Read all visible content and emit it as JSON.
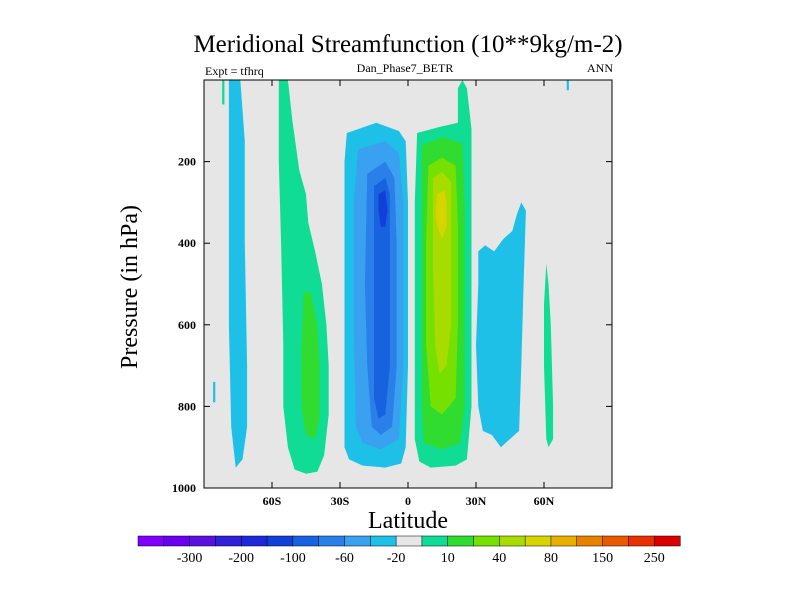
{
  "chart_data": {
    "type": "filled-contour",
    "title": "Meridional Streamfunction (10**9kg/m-2)",
    "left_label": "Expt = tfhrq",
    "center_label": "Dan_Phase7_BETR",
    "right_label": "ANN",
    "xlabel": "Latitude",
    "ylabel": "Pressure (in hPa)",
    "xlim": [
      -90,
      90
    ],
    "ylim": [
      1000,
      0
    ],
    "x_ticks": [
      {
        "value": -60,
        "label": "60S"
      },
      {
        "value": -30,
        "label": "30S"
      },
      {
        "value": 0,
        "label": "0"
      },
      {
        "value": 30,
        "label": "30N"
      },
      {
        "value": 60,
        "label": "60N"
      }
    ],
    "y_ticks": [
      {
        "value": 200,
        "label": "200"
      },
      {
        "value": 400,
        "label": "400"
      },
      {
        "value": 600,
        "label": "600"
      },
      {
        "value": 800,
        "label": "800"
      },
      {
        "value": 1000,
        "label": "1000"
      }
    ],
    "background_color": "#e6e6e6",
    "levels": [
      {
        "color": "#8000ff",
        "label": ""
      },
      {
        "color": "#6a00f0",
        "label": "-300"
      },
      {
        "color": "#5a10e0",
        "label": ""
      },
      {
        "color": "#3020d8",
        "label": "-200"
      },
      {
        "color": "#1a2ad8",
        "label": ""
      },
      {
        "color": "#1040d8",
        "label": "-100"
      },
      {
        "color": "#1862e0",
        "label": ""
      },
      {
        "color": "#2a80e8",
        "label": "-60"
      },
      {
        "color": "#3aa0f0",
        "label": ""
      },
      {
        "color": "#1ec0e8",
        "label": "-20"
      },
      {
        "color": "#e6e6e6",
        "label": ""
      },
      {
        "color": "#10dc96",
        "label": "10"
      },
      {
        "color": "#30dc30",
        "label": ""
      },
      {
        "color": "#76e000",
        "label": "40"
      },
      {
        "color": "#a8dc00",
        "label": ""
      },
      {
        "color": "#d8d400",
        "label": "80"
      },
      {
        "color": "#e8b000",
        "label": ""
      },
      {
        "color": "#e88000",
        "label": "150"
      },
      {
        "color": "#e85a00",
        "label": ""
      },
      {
        "color": "#e83000",
        "label": "250"
      },
      {
        "color": "#d80000",
        "label": ""
      }
    ],
    "regions": [
      {
        "color": "#1ec0e8",
        "points": [
          [
            -79,
            0
          ],
          [
            -74,
            0
          ],
          [
            -72,
            150
          ],
          [
            -72,
            400
          ],
          [
            -71,
            700
          ],
          [
            -71,
            850
          ],
          [
            -73,
            930
          ],
          [
            -76,
            950
          ],
          [
            -78,
            850
          ],
          [
            -79,
            600
          ],
          [
            -79,
            300
          ]
        ]
      },
      {
        "color": "#10dc96",
        "points": [
          [
            -57,
            0
          ],
          [
            -53,
            0
          ],
          [
            -51,
            100
          ],
          [
            -48,
            220
          ],
          [
            -45,
            280
          ],
          [
            -44,
            350
          ],
          [
            -41,
            420
          ],
          [
            -38,
            500
          ],
          [
            -36,
            600
          ],
          [
            -35,
            700
          ],
          [
            -35,
            820
          ],
          [
            -37,
            920
          ],
          [
            -40,
            960
          ],
          [
            -45,
            965
          ],
          [
            -50,
            955
          ],
          [
            -53,
            900
          ],
          [
            -55,
            800
          ],
          [
            -55,
            650
          ],
          [
            -56,
            400
          ],
          [
            -57,
            200
          ]
        ]
      },
      {
        "color": "#30dc30",
        "points": [
          [
            -46,
            520
          ],
          [
            -43,
            520
          ],
          [
            -40,
            600
          ],
          [
            -39,
            700
          ],
          [
            -39,
            830
          ],
          [
            -41,
            880
          ],
          [
            -45,
            870
          ],
          [
            -47,
            800
          ],
          [
            -47,
            650
          ]
        ]
      },
      {
        "color": "#1ec0e8",
        "points": [
          [
            -27,
            130
          ],
          [
            -14,
            105
          ],
          [
            -4,
            125
          ],
          [
            -1,
            150
          ],
          [
            0,
            300
          ],
          [
            0,
            700
          ],
          [
            -1,
            900
          ],
          [
            -3,
            940
          ],
          [
            -10,
            950
          ],
          [
            -20,
            945
          ],
          [
            -26,
            930
          ],
          [
            -28,
            900
          ],
          [
            -28,
            700
          ],
          [
            -28,
            400
          ],
          [
            -28,
            200
          ]
        ]
      },
      {
        "color": "#3aa0f0",
        "points": [
          [
            -22,
            170
          ],
          [
            -10,
            150
          ],
          [
            -4,
            180
          ],
          [
            -2,
            300
          ],
          [
            -2,
            700
          ],
          [
            -4,
            880
          ],
          [
            -12,
            905
          ],
          [
            -20,
            890
          ],
          [
            -23,
            850
          ],
          [
            -24,
            600
          ],
          [
            -24,
            300
          ]
        ]
      },
      {
        "color": "#2a80e8",
        "points": [
          [
            -18,
            230
          ],
          [
            -10,
            200
          ],
          [
            -6,
            240
          ],
          [
            -5,
            400
          ],
          [
            -5,
            700
          ],
          [
            -7,
            850
          ],
          [
            -12,
            870
          ],
          [
            -16,
            850
          ],
          [
            -18,
            700
          ],
          [
            -19,
            500
          ]
        ]
      },
      {
        "color": "#1862e0",
        "points": [
          [
            -15,
            260
          ],
          [
            -10,
            240
          ],
          [
            -8,
            280
          ],
          [
            -8,
            400
          ],
          [
            -8,
            700
          ],
          [
            -10,
            820
          ],
          [
            -13,
            830
          ],
          [
            -15,
            780
          ],
          [
            -15,
            600
          ],
          [
            -15,
            400
          ]
        ]
      },
      {
        "color": "#1040d8",
        "points": [
          [
            -13,
            280
          ],
          [
            -10,
            270
          ],
          [
            -9,
            320
          ],
          [
            -10,
            360
          ],
          [
            -12,
            360
          ],
          [
            -13,
            320
          ]
        ]
      },
      {
        "color": "#10dc96",
        "points": [
          [
            4,
            130
          ],
          [
            14,
            115
          ],
          [
            22,
            105
          ],
          [
            22,
            20
          ],
          [
            24,
            0
          ],
          [
            26,
            20
          ],
          [
            28,
            120
          ],
          [
            28,
            300
          ],
          [
            28,
            600
          ],
          [
            28,
            800
          ],
          [
            26,
            930
          ],
          [
            21,
            945
          ],
          [
            10,
            950
          ],
          [
            5,
            935
          ],
          [
            3,
            880
          ],
          [
            3,
            600
          ],
          [
            3,
            300
          ]
        ]
      },
      {
        "color": "#30dc30",
        "points": [
          [
            6,
            160
          ],
          [
            15,
            140
          ],
          [
            24,
            155
          ],
          [
            25,
            300
          ],
          [
            25,
            600
          ],
          [
            25,
            800
          ],
          [
            23,
            890
          ],
          [
            15,
            905
          ],
          [
            7,
            890
          ],
          [
            6,
            800
          ],
          [
            6,
            500
          ]
        ]
      },
      {
        "color": "#76e000",
        "points": [
          [
            9,
            210
          ],
          [
            15,
            190
          ],
          [
            21,
            210
          ],
          [
            22,
            350
          ],
          [
            22,
            600
          ],
          [
            21,
            780
          ],
          [
            15,
            820
          ],
          [
            10,
            800
          ],
          [
            8,
            650
          ],
          [
            8,
            400
          ]
        ]
      },
      {
        "color": "#a8dc00",
        "points": [
          [
            11,
            240
          ],
          [
            15,
            225
          ],
          [
            19,
            250
          ],
          [
            19,
            400
          ],
          [
            19,
            600
          ],
          [
            17,
            700
          ],
          [
            14,
            720
          ],
          [
            12,
            650
          ],
          [
            11,
            450
          ]
        ]
      },
      {
        "color": "#d8d400",
        "points": [
          [
            13,
            280
          ],
          [
            16,
            270
          ],
          [
            17,
            300
          ],
          [
            17,
            360
          ],
          [
            15,
            390
          ],
          [
            13,
            360
          ],
          [
            12,
            320
          ]
        ]
      },
      {
        "color": "#1ec0e8",
        "points": [
          [
            31,
            420
          ],
          [
            34,
            405
          ],
          [
            38,
            420
          ],
          [
            42,
            390
          ],
          [
            46,
            370
          ],
          [
            48,
            330
          ],
          [
            50,
            300
          ],
          [
            52,
            320
          ],
          [
            51,
            500
          ],
          [
            50,
            700
          ],
          [
            49,
            860
          ],
          [
            45,
            880
          ],
          [
            41,
            900
          ],
          [
            37,
            870
          ],
          [
            33,
            860
          ],
          [
            31,
            800
          ],
          [
            30,
            650
          ],
          [
            31,
            500
          ]
        ]
      },
      {
        "color": "#10dc96",
        "points": [
          [
            61,
            450
          ],
          [
            62,
            500
          ],
          [
            63,
            600
          ],
          [
            64,
            800
          ],
          [
            64,
            880
          ],
          [
            62,
            900
          ],
          [
            61,
            880
          ],
          [
            60,
            700
          ],
          [
            60,
            550
          ]
        ]
      },
      {
        "color": "#1ec0e8",
        "points": [
          [
            70,
            0
          ],
          [
            71,
            0
          ],
          [
            71,
            25
          ],
          [
            70,
            25
          ]
        ]
      },
      {
        "color": "#10dc96",
        "points": [
          [
            -82,
            0
          ],
          [
            -81,
            0
          ],
          [
            -81,
            60
          ],
          [
            -82,
            60
          ]
        ]
      },
      {
        "color": "#1ec0e8",
        "points": [
          [
            -86,
            740
          ],
          [
            -85,
            740
          ],
          [
            -85,
            790
          ],
          [
            -86,
            790
          ]
        ]
      }
    ]
  }
}
